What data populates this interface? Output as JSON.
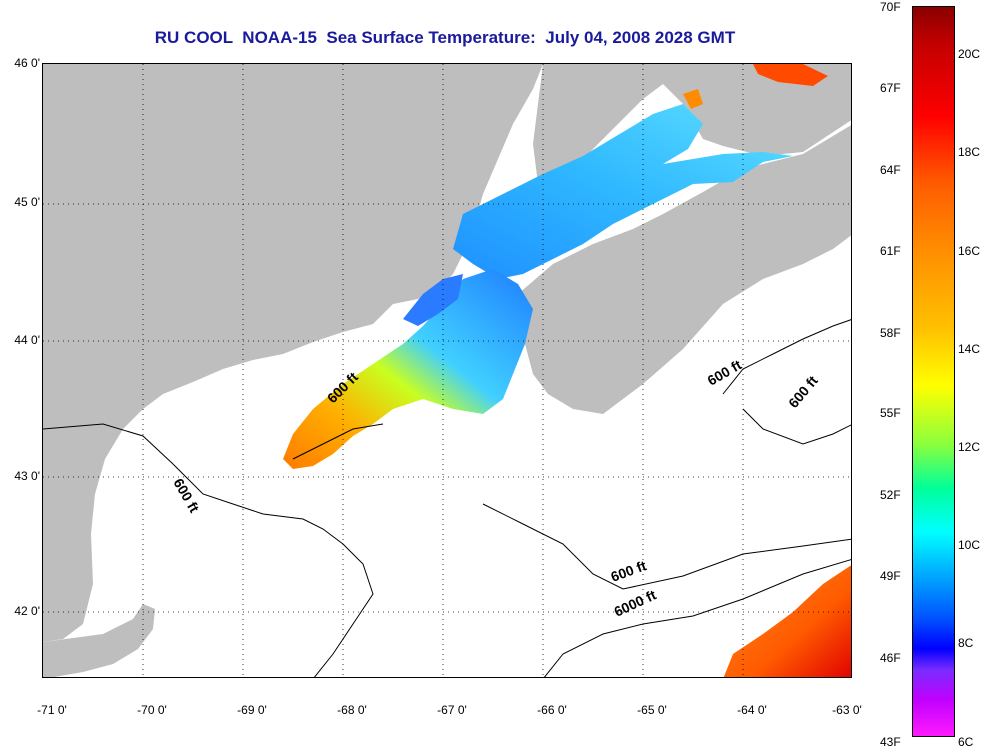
{
  "title": "RU COOL  NOAA-15  Sea Surface Temperature:  July 04, 2008 2028 GMT",
  "latitude_labels": [
    "46 0'",
    "45 0'",
    "44 0'",
    "43 0'",
    "42 0'"
  ],
  "longitude_labels": [
    "-71 0'",
    "-70 0'",
    "-69 0'",
    "-68 0'",
    "-67 0'",
    "-66 0'",
    "-65 0'",
    "-64 0'",
    "-63 0'"
  ],
  "contour_labels": [
    "600 ft",
    "600 ft",
    "600 ft",
    "600 ft",
    "600 ft",
    "6000 ft"
  ],
  "colorbar": {
    "fahrenheit": [
      "70F",
      "67F",
      "64F",
      "61F",
      "58F",
      "55F",
      "52F",
      "49F",
      "46F",
      "43F"
    ],
    "celsius": [
      "20C",
      "18C",
      "16C",
      "14C",
      "12C",
      "10C",
      "8C",
      "6C"
    ]
  },
  "colors": {
    "title": "#1a1a9c",
    "land": "#bebebe",
    "ocean_no_data": "#ffffff",
    "contour": "#000000"
  }
}
